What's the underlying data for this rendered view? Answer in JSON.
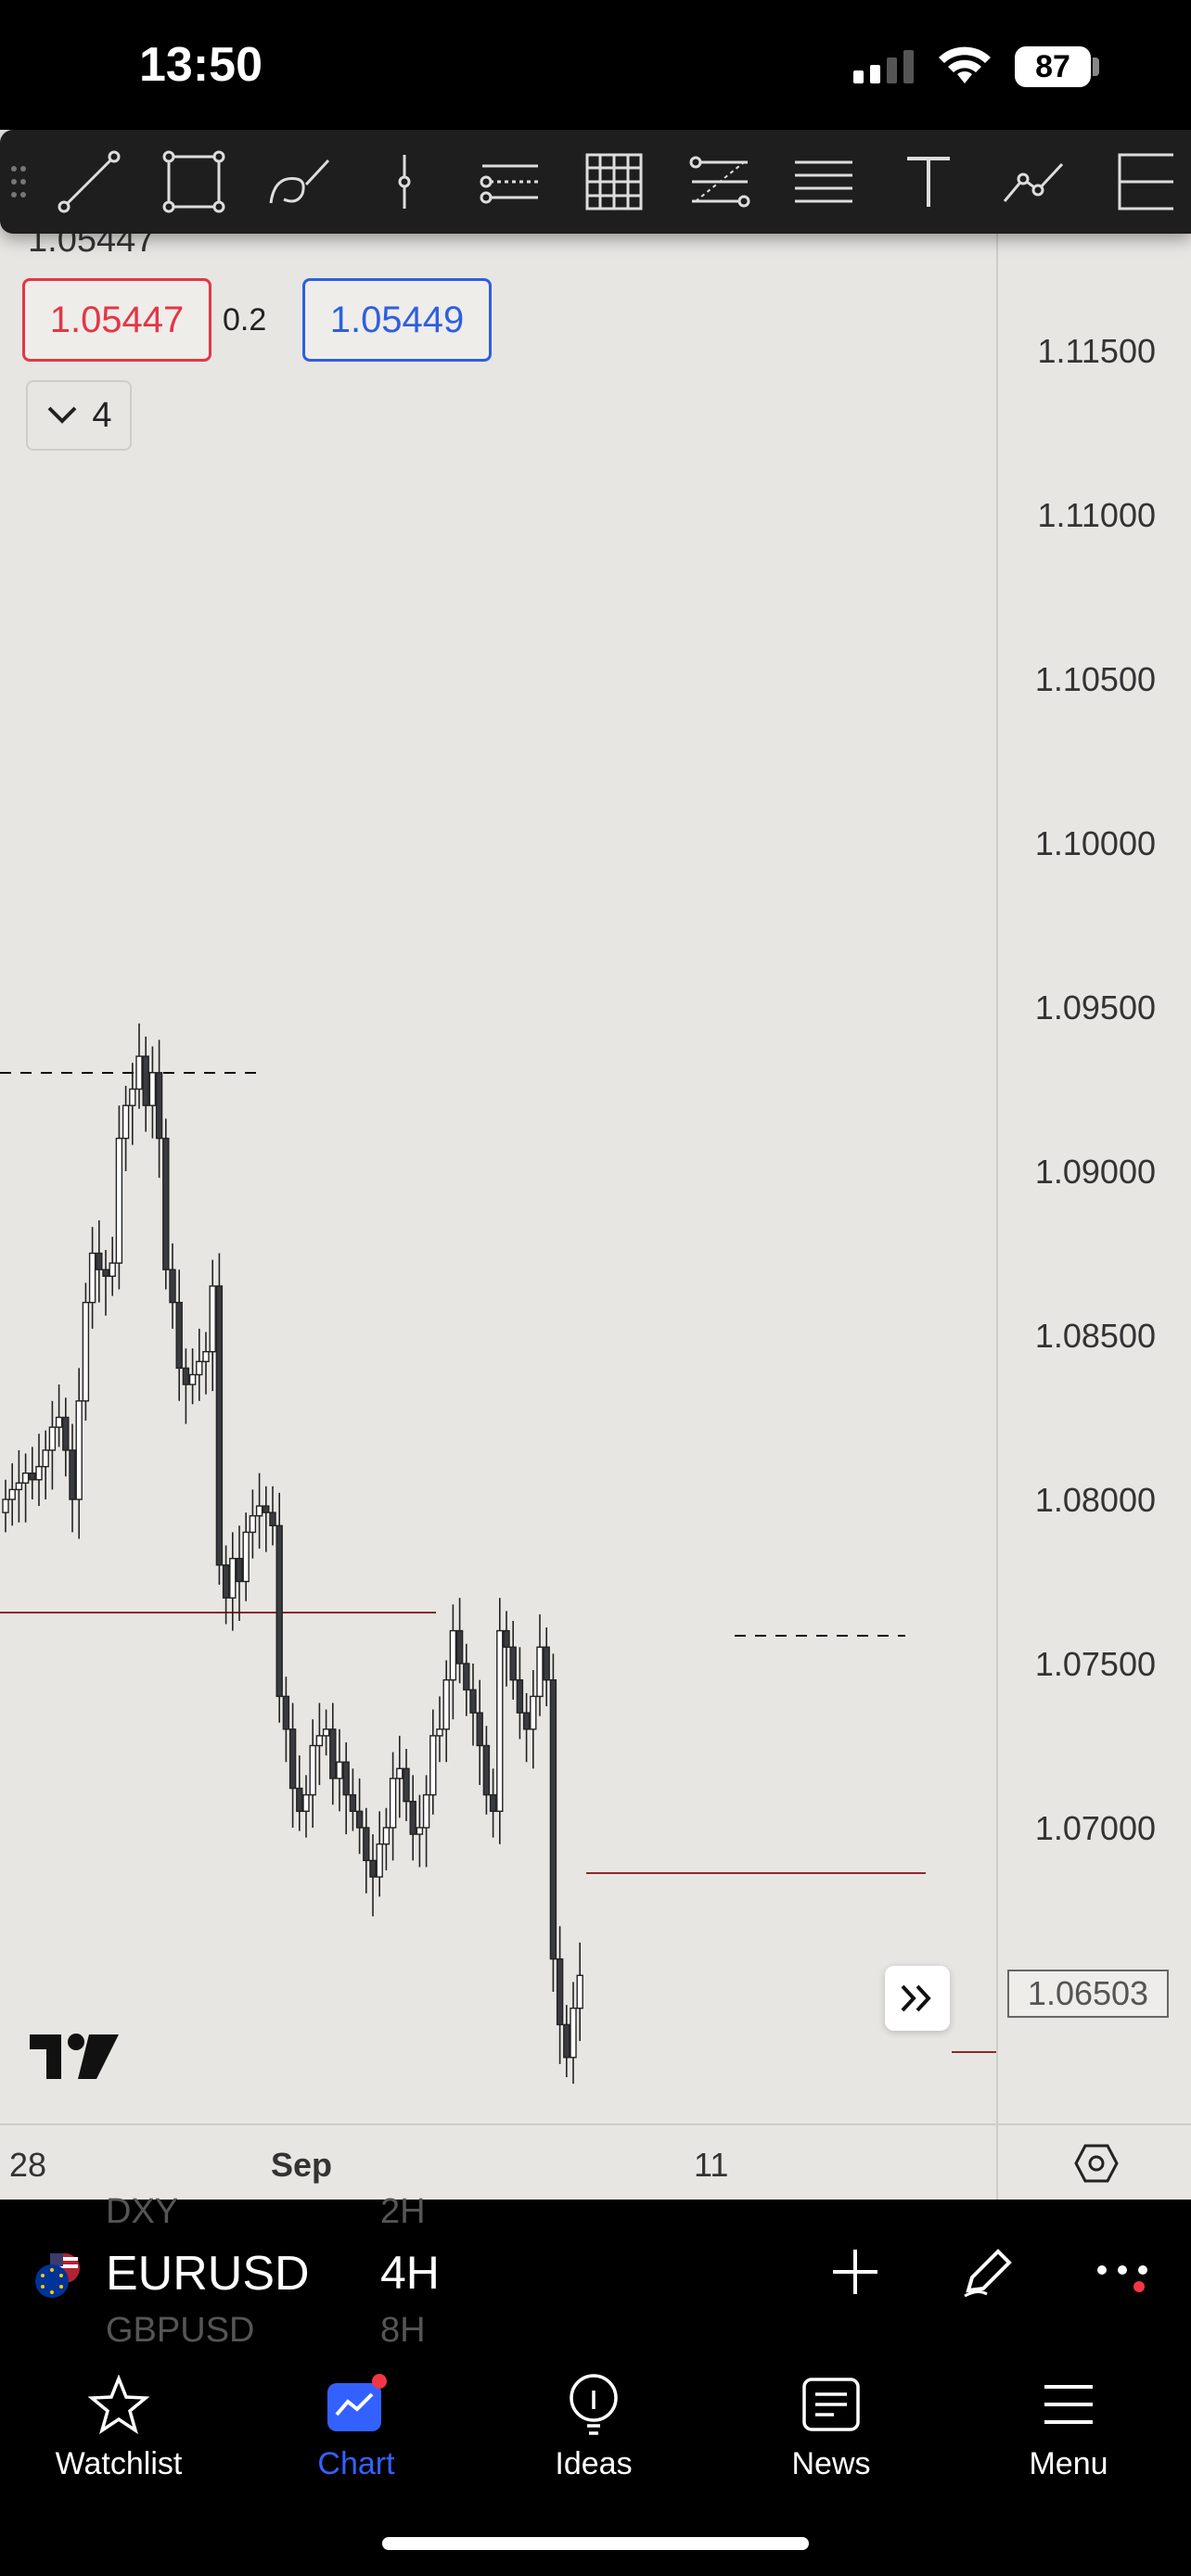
{
  "status": {
    "time": "13:50",
    "battery": "87"
  },
  "toolbar": {
    "tools": [
      "trend-line-icon",
      "rectangle-icon",
      "brush-icon",
      "vertical-line-icon",
      "pitchfork-icon",
      "gann-grid-icon",
      "fib-retracement-icon",
      "parallel-channel-icon",
      "text-icon",
      "path-icon",
      "long-position-icon"
    ]
  },
  "quote": {
    "last_price": "1.05447",
    "bid": "1.05447",
    "spread": "0.2",
    "ask": "1.05449",
    "indicator_count": "4"
  },
  "price_axis": {
    "labels": [
      "1.11500",
      "1.11000",
      "1.10500",
      "1.10000",
      "1.09500",
      "1.09000",
      "1.08500",
      "1.08000",
      "1.07500",
      "1.07000"
    ],
    "current_price": "1.06503"
  },
  "time_axis": {
    "labels": [
      "28",
      "Sep",
      "11"
    ]
  },
  "chart_data": {
    "type": "candlestick",
    "symbol": "EURUSD",
    "interval": "4H",
    "ylim": [
      1.0615,
      1.1215
    ],
    "y_ticks": [
      1.115,
      1.11,
      1.105,
      1.1,
      1.095,
      1.09,
      1.085,
      1.08,
      1.075,
      1.07
    ],
    "current_price": 1.06503,
    "x_labels": [
      "28",
      "Sep",
      "11"
    ]
  },
  "symbol_bar": {
    "symbol": "EURUSD",
    "interval": "4H",
    "prev_symbol": "DXY",
    "prev_interval": "2H",
    "next_symbol": "GBPUSD",
    "next_interval": "8H"
  },
  "tabs": [
    {
      "label": "Watchlist",
      "icon": "star-icon"
    },
    {
      "label": "Chart",
      "icon": "chart-icon"
    },
    {
      "label": "Ideas",
      "icon": "lightbulb-icon"
    },
    {
      "label": "News",
      "icon": "newspaper-icon"
    },
    {
      "label": "Menu",
      "icon": "hamburger-icon"
    }
  ],
  "colors": {
    "accent": "#3361ff",
    "bid": "#e23744",
    "ask": "#2e5fe0",
    "chart_bg": "#e8e6e3"
  }
}
